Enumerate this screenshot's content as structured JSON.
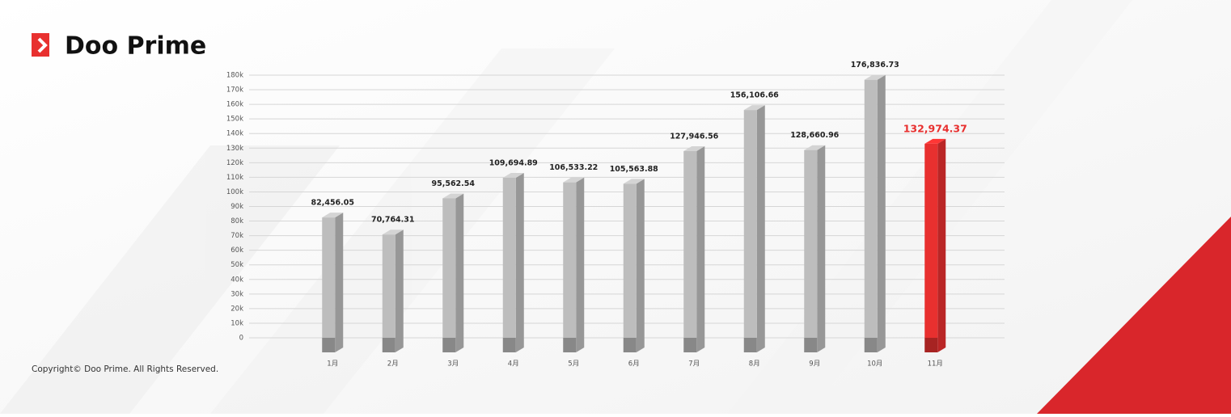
{
  "brand": "Doo Prime",
  "copyright": "Copyright© Doo Prime. All Rights Reserved.",
  "chart_data": {
    "type": "bar",
    "categories": [
      "1月",
      "2月",
      "3月",
      "4月",
      "5月",
      "6月",
      "7月",
      "8月",
      "9月",
      "10月",
      "11月"
    ],
    "values": [
      82456.05,
      70764.31,
      95562.54,
      109694.89,
      106533.22,
      105563.88,
      127946.56,
      156106.66,
      128660.96,
      176836.73,
      132974.37
    ],
    "value_labels": [
      "82,456.05",
      "70,764.31",
      "95,562.54",
      "109,694.89",
      "106,533.22",
      "105,563.88",
      "127,946.56",
      "156,106.66",
      "128,660.96",
      "176,836.73",
      "132,974.37"
    ],
    "colors": [
      "#bdbdbd",
      "#bdbdbd",
      "#bdbdbd",
      "#bdbdbd",
      "#bdbdbd",
      "#bdbdbd",
      "#bdbdbd",
      "#bdbdbd",
      "#bdbdbd",
      "#bdbdbd",
      "#e8302f"
    ],
    "ylim": [
      0,
      180000
    ],
    "yticks": [
      0,
      {
        "value": 10000,
        "label": "10k"
      },
      {
        "value": 20000,
        "label": "20k"
      },
      {
        "value": 30000,
        "label": "30k"
      },
      {
        "value": 40000,
        "label": "40k"
      },
      {
        "value": 50000,
        "label": "50k"
      },
      {
        "value": 60000,
        "label": "60k"
      },
      {
        "value": 70000,
        "label": "70k"
      },
      {
        "value": 80000,
        "label": "80k"
      },
      {
        "value": 90000,
        "label": "90k"
      },
      {
        "value": 100000,
        "label": "100k"
      },
      {
        "value": 110000,
        "label": "110k"
      },
      {
        "value": 120000,
        "label": "120k"
      },
      {
        "value": 130000,
        "label": "130k"
      },
      {
        "value": 140000,
        "label": "140k"
      },
      {
        "value": 150000,
        "label": "150k"
      },
      {
        "value": 160000,
        "label": "160k"
      },
      {
        "value": 170000,
        "label": "170k"
      },
      {
        "value": 180000,
        "label": "180k"
      }
    ],
    "grid": true
  }
}
